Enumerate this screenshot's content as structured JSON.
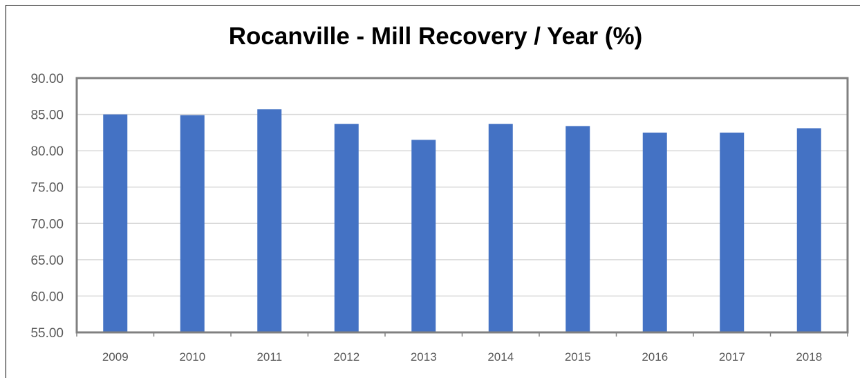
{
  "chart_data": {
    "type": "bar",
    "title": "Rocanville - Mill Recovery / Year (%)",
    "xlabel": "",
    "ylabel": "",
    "categories": [
      "2009",
      "2010",
      "2011",
      "2012",
      "2013",
      "2014",
      "2015",
      "2016",
      "2017",
      "2018"
    ],
    "values": [
      85.0,
      84.9,
      85.7,
      83.7,
      81.5,
      83.7,
      83.4,
      82.5,
      82.5,
      83.1
    ],
    "ylim": [
      55,
      90
    ],
    "yticks": [
      "55.00",
      "60.00",
      "65.00",
      "70.00",
      "75.00",
      "80.00",
      "85.00",
      "90.00"
    ],
    "grid": true,
    "legend": "none",
    "bar_color": "#4472C4",
    "gridline_color": "#D9D9D9",
    "plot_border_color": "#808080"
  }
}
